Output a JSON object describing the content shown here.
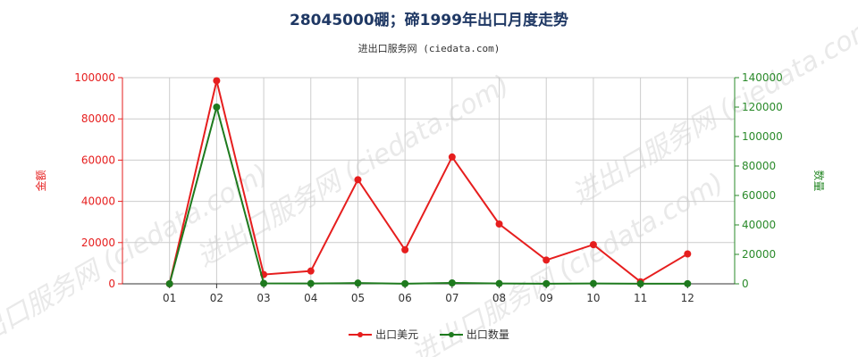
{
  "title": "28045000硼；碲1999年出口月度走势",
  "subtitle": "进出口服务网 (ciedata.com)",
  "watermark": "进出口服务网 (ciedata.com)",
  "colors": {
    "left_axis": "#e61e1e",
    "right_axis": "#2a8a2a",
    "series1": "#e61e1e",
    "series2": "#1e7a1e",
    "grid": "#cccccc",
    "title": "#1f3864"
  },
  "chart_data": {
    "type": "line",
    "title": "28045000硼；碲1999年出口月度走势",
    "categories": [
      "01",
      "02",
      "03",
      "04",
      "05",
      "06",
      "07",
      "08",
      "09",
      "10",
      "11",
      "12"
    ],
    "y_left": {
      "label": "金额",
      "ylim": [
        0,
        100000
      ],
      "ticks": [
        "0",
        "20000",
        "40000",
        "60000",
        "80000",
        "100000"
      ]
    },
    "y_right": {
      "label": "数量",
      "ylim": [
        0,
        140000
      ],
      "ticks": [
        "0",
        "20000",
        "40000",
        "60000",
        "80000",
        "100000",
        "120000",
        "140000"
      ]
    },
    "grid": true,
    "legend_position": "bottom",
    "series": [
      {
        "name": "出口美元",
        "axis": "left",
        "color": "#e61e1e",
        "values": [
          0,
          98500,
          4500,
          6200,
          50500,
          16500,
          61500,
          29000,
          11500,
          19000,
          1000,
          14500
        ]
      },
      {
        "name": "出口数量",
        "axis": "right",
        "color": "#1e7a1e",
        "values": [
          0,
          120000,
          300,
          200,
          500,
          100,
          600,
          200,
          100,
          200,
          50,
          100
        ]
      }
    ]
  }
}
